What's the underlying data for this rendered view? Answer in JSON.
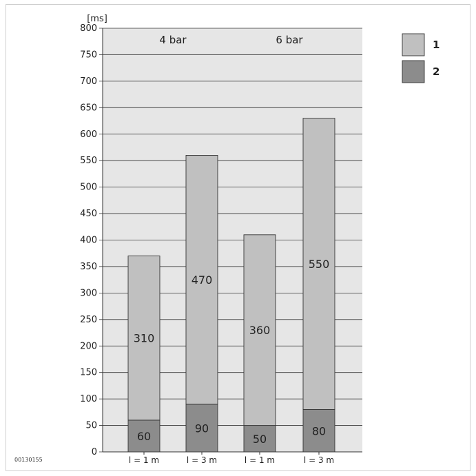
{
  "doc_code": "00130155",
  "chart_data": {
    "type": "bar",
    "stacked": true,
    "y_unit": "[ms]",
    "ylim": [
      0,
      800
    ],
    "yticks": [
      "0",
      "50",
      "100",
      "150",
      "200",
      "250",
      "300",
      "350",
      "400",
      "450",
      "500",
      "550",
      "600",
      "650",
      "700",
      "750",
      "800"
    ],
    "categories": [
      "l = 1 m",
      "l = 3 m",
      "l = 1 m",
      "l = 3 m"
    ],
    "groups": [
      {
        "label": "4 bar",
        "categories": [
          0,
          1
        ]
      },
      {
        "label": "6 bar",
        "categories": [
          2,
          3
        ]
      }
    ],
    "series": [
      {
        "name": "2",
        "values": [
          60,
          90,
          50,
          80
        ],
        "color": "#8c8c8c"
      },
      {
        "name": "1",
        "values": [
          310,
          470,
          360,
          550
        ],
        "color": "#c0c0c0"
      }
    ],
    "legend": [
      "1",
      "2"
    ],
    "legend_position": "top-right",
    "grid": true,
    "colors": {
      "background": "#e6e6e6",
      "grid": "#333333",
      "bar_border": "#333333"
    }
  }
}
